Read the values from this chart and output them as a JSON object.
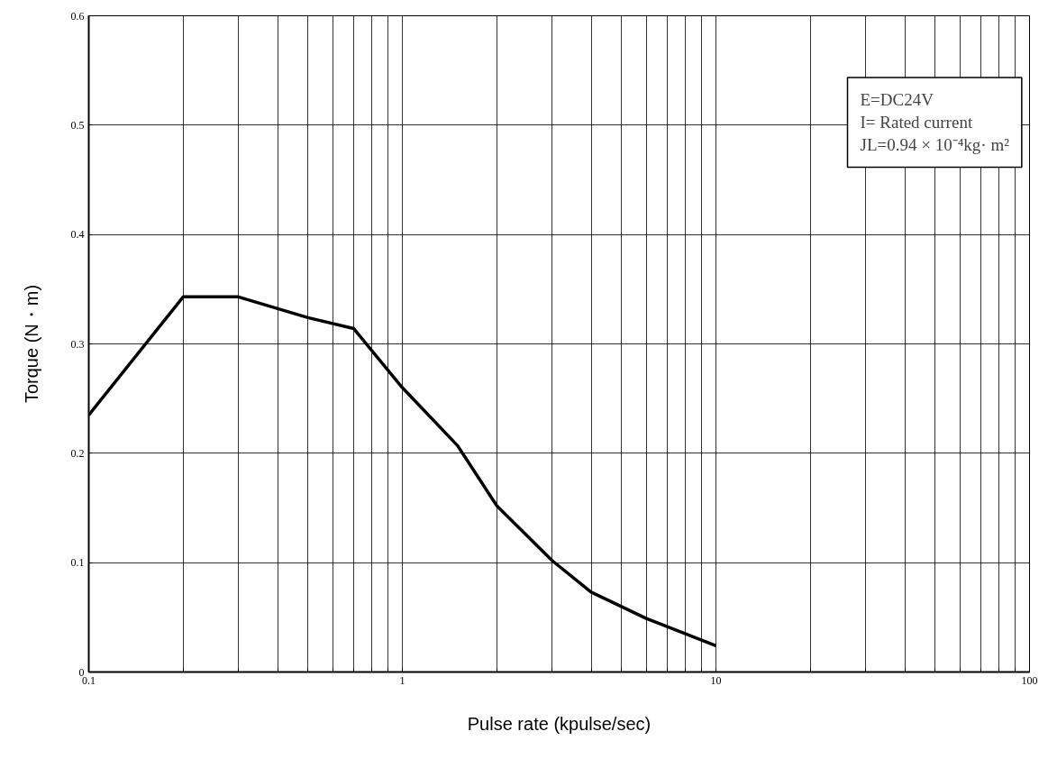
{
  "chart_data": {
    "type": "line",
    "xlabel": "Pulse rate (kpulse/sec)",
    "ylabel": "Torque (N・m)",
    "annotations": [
      "E=DC24V",
      "I= Rated current",
      "JL=0.94 × 10⁻⁴kg· m²"
    ],
    "log": "x",
    "xlim": [
      0.1,
      100
    ],
    "ylim": [
      0,
      0.6
    ],
    "xticks": [
      0.1,
      {
        "value": 0.2,
        "label": null
      },
      {
        "value": 0.3,
        "label": null
      },
      {
        "value": 0.4,
        "label": null
      },
      {
        "value": 0.5,
        "label": null
      },
      {
        "value": 0.6,
        "label": null
      },
      {
        "value": 0.7,
        "label": null
      },
      {
        "value": 0.8,
        "label": null
      },
      {
        "value": 0.9,
        "label": null
      },
      1,
      {
        "value": 2,
        "label": null
      },
      {
        "value": 3,
        "label": null
      },
      {
        "value": 4,
        "label": null
      },
      {
        "value": 5,
        "label": null
      },
      {
        "value": 6,
        "label": null
      },
      {
        "value": 7,
        "label": null
      },
      {
        "value": 8,
        "label": null
      },
      {
        "value": 9,
        "label": null
      },
      10,
      {
        "value": 20,
        "label": null
      },
      {
        "value": 30,
        "label": null
      },
      {
        "value": 40,
        "label": null
      },
      {
        "value": 50,
        "label": null
      },
      {
        "value": 60,
        "label": null
      },
      {
        "value": 70,
        "label": null
      },
      {
        "value": 80,
        "label": null
      },
      {
        "value": 90,
        "label": null
      },
      100
    ],
    "yticks": [
      0,
      0.1,
      0.2,
      0.3,
      0.4,
      0.5,
      0.6
    ],
    "grid": true,
    "marker": "none",
    "line_style": "solid",
    "series": [
      {
        "color": "#000000",
        "x": [
          0.1,
          0.2,
          0.3,
          0.5,
          0.7,
          1,
          1.5,
          2,
          3,
          4,
          6,
          10
        ],
        "values": [
          0.235,
          0.343,
          0.343,
          0.324,
          0.314,
          0.26,
          0.207,
          0.152,
          0.102,
          0.073,
          0.049,
          0.024
        ]
      }
    ]
  }
}
